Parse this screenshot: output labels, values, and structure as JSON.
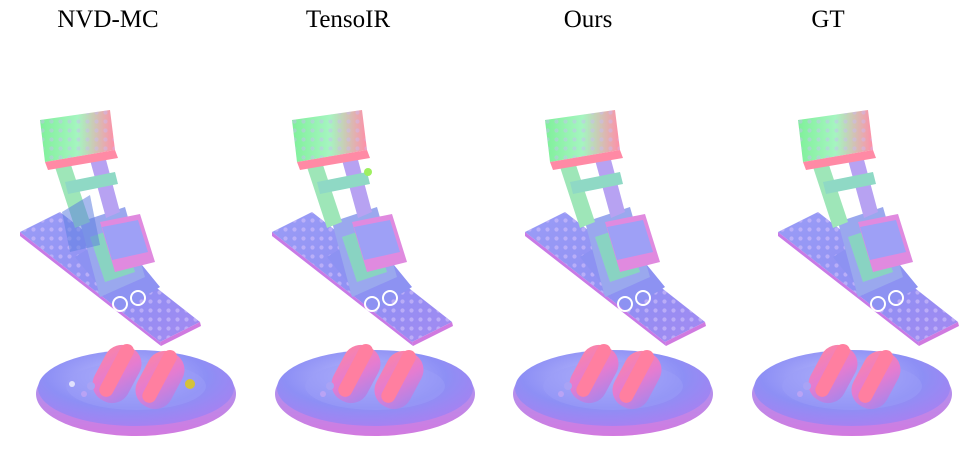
{
  "columns": [
    {
      "label": "NVD-MC"
    },
    {
      "label": "TensoIR"
    },
    {
      "label": "Ours"
    },
    {
      "label": "GT"
    }
  ],
  "rows": [
    {
      "object": "lego-excavator"
    },
    {
      "object": "hotdog-plate"
    }
  ],
  "colors": {
    "normal_blue": "#8f8ff3",
    "normal_purple": "#b483f2",
    "normal_pink": "#e67ad0",
    "normal_green": "#7ff09a",
    "normal_red": "#ff7f9a",
    "background": "#ffffff"
  }
}
